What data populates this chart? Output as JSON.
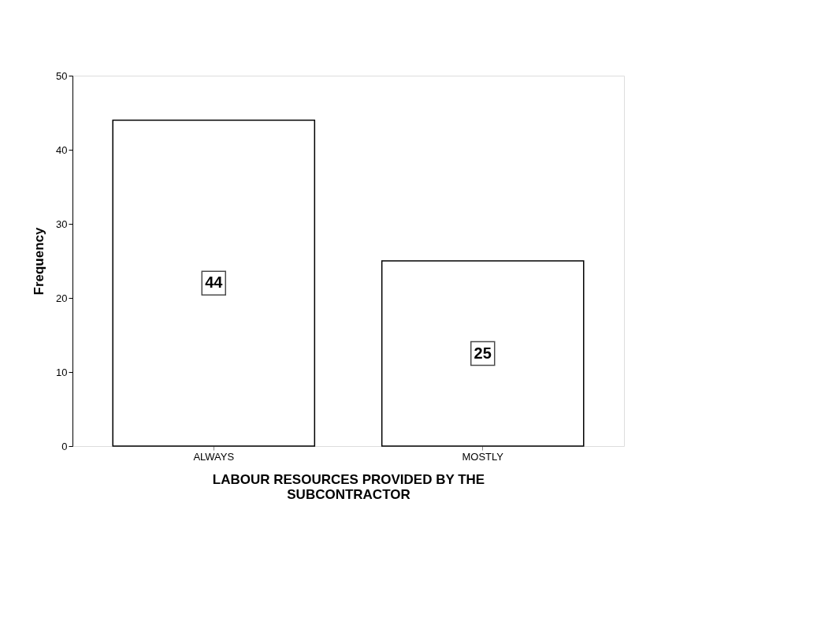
{
  "chart_data": {
    "type": "bar",
    "xlabel": "LABOUR RESOURCES PROVIDED BY THE\nSUBCONTRACTOR",
    "ylabel": "Frequency",
    "categories": [
      "ALWAYS",
      "MOSTLY"
    ],
    "values": [
      44,
      25
    ],
    "color": "#ffffff",
    "ylim": [
      0,
      50
    ],
    "yticks": [
      0,
      10,
      20,
      30,
      40,
      50
    ],
    "data_labels": true,
    "grid": false
  }
}
